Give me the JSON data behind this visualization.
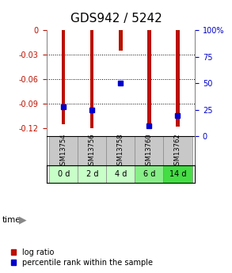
{
  "title": "GDS942 / 5242",
  "samples": [
    "GSM13754",
    "GSM13756",
    "GSM13758",
    "GSM13760",
    "GSM13762"
  ],
  "time_labels": [
    "0 d",
    "2 d",
    "4 d",
    "6 d",
    "14 d"
  ],
  "log_ratio": [
    -0.115,
    -0.12,
    -0.025,
    -0.115,
    -0.118
  ],
  "percentile_rank": [
    28,
    25,
    50,
    10,
    20
  ],
  "ylim_left": [
    -0.13,
    0.0
  ],
  "ylim_right": [
    0,
    100
  ],
  "yticks_left": [
    0.0,
    -0.03,
    -0.06,
    -0.09,
    -0.12
  ],
  "ytick_labels_left": [
    "0",
    "-0.03",
    "-0.06",
    "-0.09",
    "-0.12"
  ],
  "yticks_right": [
    100,
    75,
    50,
    25,
    0
  ],
  "ytick_labels_right": [
    "100%",
    "75",
    "50",
    "25",
    "0"
  ],
  "bar_color": "#bb1100",
  "dot_color": "#0000cc",
  "sample_bg": "#c8c8c8",
  "time_bg_colors": [
    "#c8ffc8",
    "#c8ffc8",
    "#c8ffc8",
    "#88ee88",
    "#44dd44"
  ],
  "title_fontsize": 11,
  "tick_fontsize": 7,
  "legend_fontsize": 7,
  "bar_width": 0.12
}
